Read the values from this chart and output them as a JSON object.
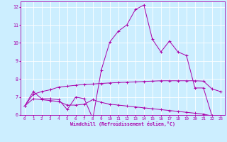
{
  "xlabel": "Windchill (Refroidissement éolien,°C)",
  "background_color": "#cceeff",
  "line_color": "#aa00aa",
  "x": [
    0,
    1,
    2,
    3,
    4,
    5,
    6,
    7,
    8,
    9,
    10,
    11,
    12,
    13,
    14,
    15,
    16,
    17,
    18,
    19,
    20,
    21,
    22,
    23
  ],
  "line1": [
    6.5,
    7.3,
    6.9,
    6.9,
    6.85,
    6.3,
    7.0,
    6.9,
    5.8,
    8.5,
    10.05,
    10.65,
    11.0,
    11.85,
    12.1,
    10.2,
    9.5,
    10.1,
    9.5,
    9.3,
    7.5,
    7.5,
    5.95,
    5.85
  ],
  "line2": [
    6.5,
    7.15,
    7.3,
    7.4,
    7.55,
    7.6,
    7.65,
    7.7,
    7.72,
    7.75,
    7.78,
    7.8,
    7.82,
    7.84,
    7.86,
    7.88,
    7.9,
    7.9,
    7.9,
    7.9,
    7.9,
    7.88,
    7.45,
    7.3
  ],
  "line3": [
    6.5,
    6.9,
    6.85,
    6.8,
    6.75,
    6.55,
    6.55,
    6.6,
    6.85,
    6.7,
    6.6,
    6.55,
    6.5,
    6.45,
    6.4,
    6.35,
    6.3,
    6.25,
    6.2,
    6.15,
    6.1,
    6.05,
    5.95,
    5.85
  ],
  "ylim": [
    6,
    12.3
  ],
  "xlim": [
    -0.5,
    23.5
  ],
  "yticks": [
    6,
    7,
    8,
    9,
    10,
    11,
    12
  ],
  "xticks": [
    0,
    1,
    2,
    3,
    4,
    5,
    6,
    7,
    8,
    9,
    10,
    11,
    12,
    13,
    14,
    15,
    16,
    17,
    18,
    19,
    20,
    21,
    22,
    23
  ]
}
